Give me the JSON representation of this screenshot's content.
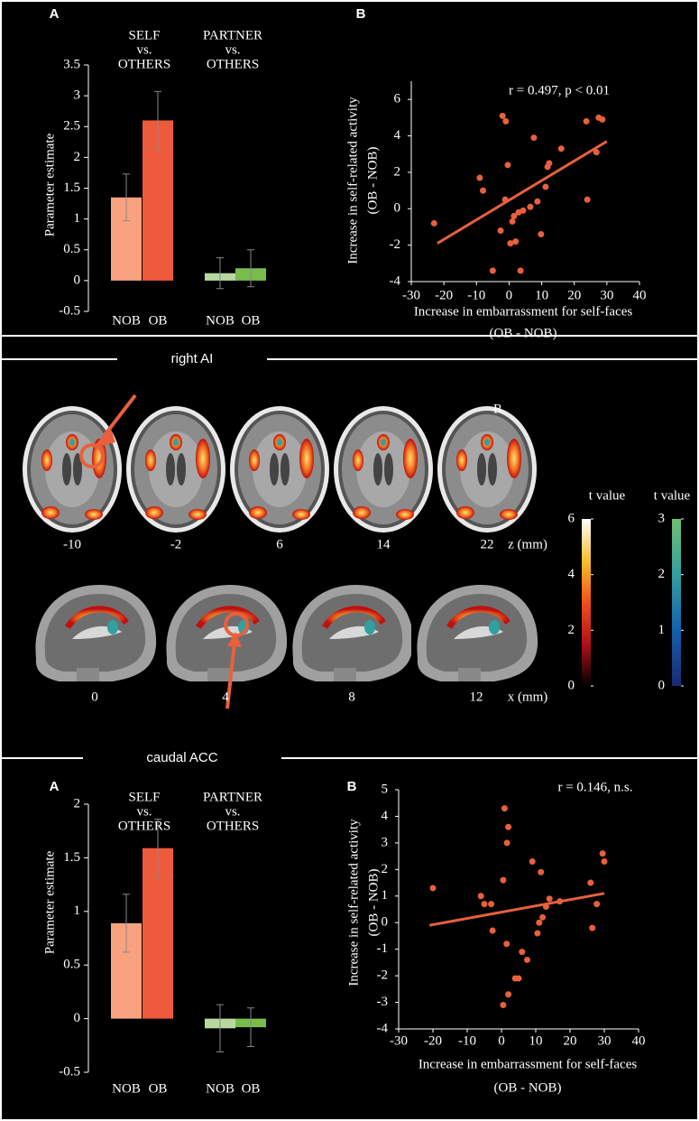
{
  "chart_data": [
    {
      "type": "bar",
      "panel": "A",
      "ylabel": "Parameter estimate",
      "group_labels": [
        [
          "SELF",
          "vs.",
          "OTHERS"
        ],
        [
          "PARTNER",
          "vs.",
          "OTHERS"
        ]
      ],
      "categories": [
        "NOB",
        "OB",
        "NOB",
        "OB"
      ],
      "values": [
        1.35,
        2.6,
        0.12,
        0.2
      ],
      "errors": [
        0.38,
        0.47,
        0.25,
        0.3
      ],
      "colors": [
        "#f9a27f",
        "#ee5a3c",
        "#b7d99f",
        "#78bd4c"
      ],
      "ylim": [
        -0.5,
        3.5
      ],
      "yticks": [
        -0.5,
        0,
        0.5,
        1,
        1.5,
        2,
        2.5,
        3,
        3.5
      ]
    },
    {
      "type": "scatter",
      "panel": "B",
      "annotation": "r = 0.497, p < 0.01",
      "xlabel": [
        "Increase in embarrassment for self-faces",
        "(OB - NOB)"
      ],
      "ylabel": [
        "Increase in self-related activity",
        "(OB - NOB)"
      ],
      "color": "#e8603c",
      "x": [
        -23,
        -9,
        -8,
        -5,
        -2,
        -1,
        -1.2,
        -2.6,
        -0.4,
        1,
        1.5,
        2,
        0.4,
        2.9,
        3.5,
        4.3,
        6.5,
        7.6,
        8.7,
        9.8,
        11.2,
        11.8,
        12.3,
        16,
        23.7,
        24,
        26.8,
        27.5,
        28.6
      ],
      "values": [
        -0.8,
        1.7,
        1.0,
        -3.4,
        5.1,
        4.8,
        0.5,
        -1.2,
        2.4,
        -0.7,
        -0.4,
        -1.8,
        -1.9,
        -0.2,
        -3.4,
        -0.1,
        0.1,
        3.9,
        0.4,
        -1.4,
        1.2,
        2.3,
        2.5,
        3.3,
        4.8,
        0.5,
        3.1,
        5.0,
        4.9
      ],
      "fit": {
        "x": [
          -22,
          30
        ],
        "values": [
          -1.9,
          3.7
        ]
      },
      "xlim": [
        -30,
        40
      ],
      "xticks": [
        -30,
        -20,
        -10,
        0,
        10,
        20,
        30,
        40
      ],
      "ylim": [
        -4,
        7
      ],
      "yticks": [
        -4,
        -2,
        0,
        2,
        4,
        6
      ]
    },
    {
      "type": "bar",
      "panel": "A",
      "ylabel": "Parameter estimate",
      "group_labels": [
        [
          "SELF",
          "vs.",
          "OTHERS"
        ],
        [
          "PARTNER",
          "vs.",
          "OTHERS"
        ]
      ],
      "categories": [
        "NOB",
        "OB",
        "NOB",
        "OB"
      ],
      "values": [
        0.89,
        1.59,
        -0.09,
        -0.08
      ],
      "errors": [
        0.27,
        0.27,
        0.22,
        0.18
      ],
      "colors": [
        "#f9a27f",
        "#ee5a3c",
        "#b7d99f",
        "#78bd4c"
      ],
      "ylim": [
        -0.5,
        2
      ],
      "yticks": [
        -0.5,
        0,
        0.5,
        1,
        1.5,
        2
      ]
    },
    {
      "type": "scatter",
      "panel": "B",
      "annotation": "r = 0.146, n.s.",
      "xlabel": [
        "Increase in embarrassment for self-faces",
        "(OB - NOB)"
      ],
      "ylabel": [
        "Increase in self-related activity",
        "(OB - NOB)"
      ],
      "color": "#e8603c",
      "x": [
        -20,
        0.9,
        2,
        1.6,
        0.5,
        -6,
        -5,
        -3,
        -2.6,
        1.5,
        0.5,
        2,
        4,
        5,
        6,
        7.5,
        9,
        10.5,
        11,
        12,
        11.5,
        13,
        14,
        17,
        26,
        26.5,
        27.8,
        29.5,
        30
      ],
      "values": [
        1.3,
        4.3,
        3.6,
        3.0,
        1.6,
        1.0,
        0.7,
        0.7,
        -0.3,
        -0.8,
        -3.1,
        -2.7,
        -2.1,
        -2.1,
        -1.1,
        -1.4,
        2.3,
        -0.4,
        0,
        0.2,
        1.9,
        0.6,
        0.9,
        0.8,
        1.5,
        -0.2,
        0.7,
        2.6,
        2.3
      ],
      "fit": {
        "x": [
          -21,
          30
        ],
        "values": [
          -0.1,
          1.1
        ]
      },
      "xlim": [
        -30,
        40
      ],
      "xticks": [
        -30,
        -20,
        -10,
        0,
        10,
        20,
        30,
        40
      ],
      "ylim": [
        -4,
        5
      ],
      "yticks": [
        -4,
        -3,
        -2,
        -1,
        0,
        1,
        2,
        3,
        4,
        5
      ]
    }
  ],
  "regions": [
    "right AI",
    "caudal ACC"
  ],
  "slices": {
    "marker": "R",
    "z": {
      "labels": [
        -10,
        -2,
        6,
        14,
        22
      ],
      "unit": "z (mm)"
    },
    "x": {
      "labels": [
        0,
        4,
        8,
        12
      ],
      "unit": "x (mm)"
    }
  },
  "colorbars": [
    {
      "title": "t value",
      "lim": [
        0,
        6
      ],
      "ticks": [
        0,
        2,
        4,
        6
      ],
      "colors": [
        "#000000",
        "#b0101a",
        "#f0501a",
        "#f8c030",
        "#ffffff"
      ]
    },
    {
      "title": "t value",
      "lim": [
        0,
        3
      ],
      "ticks": [
        0,
        1,
        2,
        3
      ],
      "colors": [
        "#1a2a70",
        "#1460b0",
        "#30a0a0",
        "#70c070"
      ]
    }
  ]
}
